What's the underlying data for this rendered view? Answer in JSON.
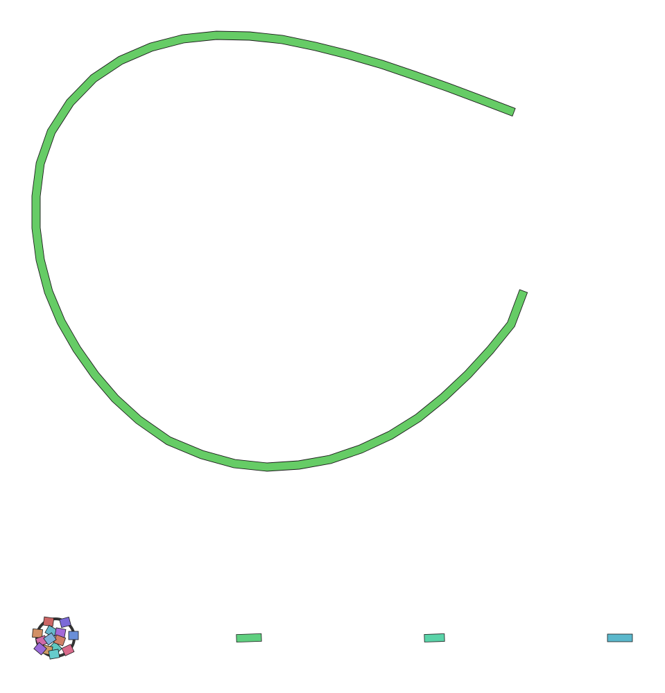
{
  "colors": {
    "background": "#ffffff",
    "arc_green": "#66cc66",
    "outline": "#1a1a1a",
    "connector_dark": "#333333",
    "pill_green": "#5fcf7f",
    "pill_teal": "#5ad3a8",
    "pill_cyan": "#5bb8cc"
  },
  "arc": {
    "shape": "open-loop",
    "segments": 32,
    "fill": "#66cc66"
  },
  "cluster": {
    "blocks": [
      {
        "color": "#cc6666"
      },
      {
        "color": "#7b6ad8"
      },
      {
        "color": "#d29066"
      },
      {
        "color": "#66b8cc"
      },
      {
        "color": "#d06aa8"
      },
      {
        "color": "#a36ad8"
      },
      {
        "color": "#5fc8c0"
      },
      {
        "color": "#6a8fd8"
      },
      {
        "color": "#d86a8a"
      },
      {
        "color": "#cc9a66"
      },
      {
        "color": "#9a6ad8"
      },
      {
        "color": "#66cccc"
      },
      {
        "color": "#d08066"
      },
      {
        "color": "#7fb0d8"
      }
    ]
  },
  "pills": [
    {
      "color": "#5fcf7f"
    },
    {
      "color": "#5ad3a8"
    },
    {
      "color": "#5bb8cc"
    }
  ]
}
